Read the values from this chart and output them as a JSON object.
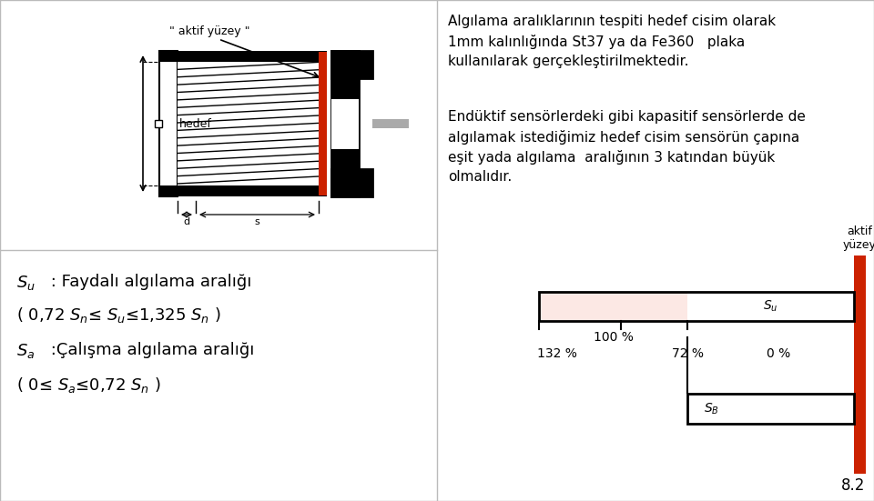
{
  "bg_color": "#ffffff",
  "text_color": "#000000",
  "red_color": "#cc2200",
  "gray_color": "#aaaaaa",
  "su_fill": "#fce8e4",
  "top_text1_line1": "Algılama aralıklarının tespiti hedef cisim olarak",
  "top_text1_line2": "1mm kalınlığında St37 ya da Fe360   plaka",
  "top_text1_line3": "kullanılarak gerçekleştirilmektedir.",
  "top_text2_line1": "Endüktif sensörlerdeki gibi kapasitif sensörlerde de",
  "top_text2_line2": "algılamak istediğimiz hedef cisim sensörün çapına",
  "top_text2_line3": "eşit yada algılama  aralığının 3 katından büyük",
  "top_text2_line4": "olmalıdır.",
  "page_number": "8.2",
  "label_aktif_yuzey": "\" aktif yüzey \"",
  "label_hedef": "hedef",
  "label_d": "d",
  "label_s": "s",
  "aktif_yuzey_bottom": "aktif\nyüzey",
  "pct_132": "132 %",
  "pct_100": "100 %",
  "pct_72": "72 %",
  "pct_0": "0 %"
}
